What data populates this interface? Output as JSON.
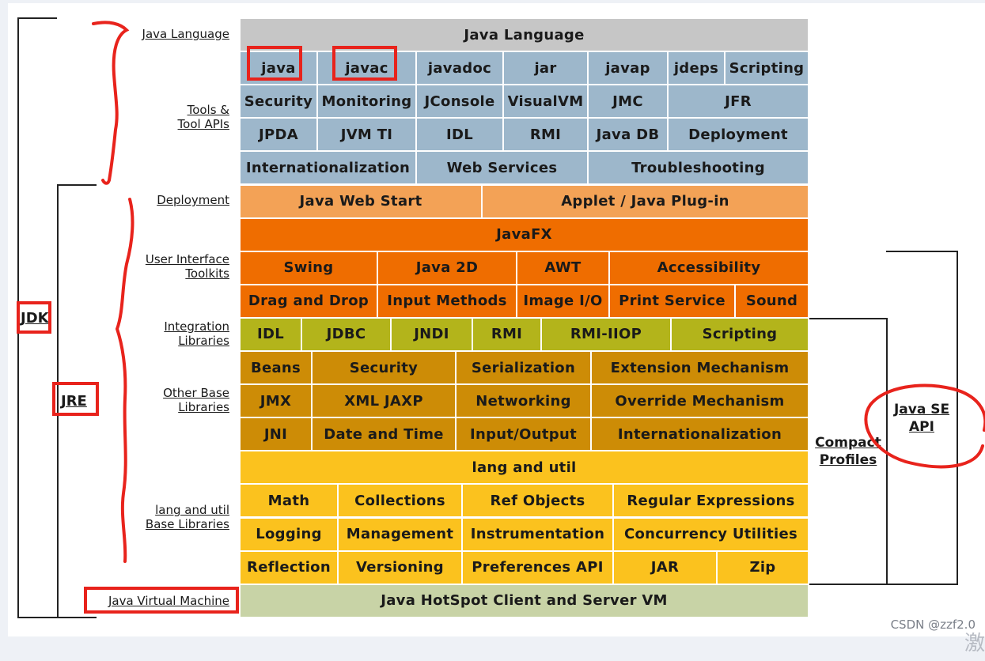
{
  "colors": {
    "gray": "#c6c6c6",
    "steel": "#9db7cb",
    "light_orange": "#f3a256",
    "orange": "#ef6d00",
    "olive": "#b3b41b",
    "gold": "#cd8c06",
    "yellow": "#fbc21e",
    "sage": "#c8d3a6",
    "annotation_red": "#e8231c"
  },
  "left_labels": {
    "java_language": "Java Language",
    "tools": "Tools &\nTool APIs",
    "deployment": "Deployment",
    "ui_toolkits": "User Interface\nToolkits",
    "integration": "Integration\nLibraries",
    "other_base": "Other Base\nLibraries",
    "lang_util": "lang and util\nBase Libraries",
    "jvm": "Java Virtual Machine"
  },
  "bracket_labels": {
    "jdk": "JDK",
    "jre": "JRE"
  },
  "right_labels": {
    "compact_profiles": "Compact\nProfiles",
    "java_se_api": "Java SE\nAPI"
  },
  "watermark": "CSDN @zzf2.0",
  "watermark_glyph": "激",
  "diagram": {
    "java_language": "Java Language",
    "tools_row1": [
      "java",
      "javac",
      "javadoc",
      "jar",
      "javap",
      "jdeps",
      "Scripting"
    ],
    "tools_row2": [
      "Security",
      "Monitoring",
      "JConsole",
      "VisualVM",
      "JMC",
      "JFR"
    ],
    "tools_row3": [
      "JPDA",
      "JVM TI",
      "IDL",
      "RMI",
      "Java DB",
      "Deployment"
    ],
    "tools_row4": [
      "Internationalization",
      "Web Services",
      "Troubleshooting"
    ],
    "deployment_row": [
      "Java Web Start",
      "Applet / Java Plug-in"
    ],
    "javafx": "JavaFX",
    "ui_row1": [
      "Swing",
      "Java 2D",
      "AWT",
      "Accessibility"
    ],
    "ui_row2": [
      "Drag and Drop",
      "Input Methods",
      "Image I/O",
      "Print Service",
      "Sound"
    ],
    "integration_row": [
      "IDL",
      "JDBC",
      "JNDI",
      "RMI",
      "RMI-IIOP",
      "Scripting"
    ],
    "other_row1": [
      "Beans",
      "Security",
      "Serialization",
      "Extension Mechanism"
    ],
    "other_row2": [
      "JMX",
      "XML JAXP",
      "Networking",
      "Override Mechanism"
    ],
    "other_row3": [
      "JNI",
      "Date and Time",
      "Input/Output",
      "Internationalization"
    ],
    "lang_util": "lang and util",
    "lang_row1": [
      "Math",
      "Collections",
      "Ref Objects",
      "Regular Expressions"
    ],
    "lang_row2": [
      "Logging",
      "Management",
      "Instrumentation",
      "Concurrency Utilities"
    ],
    "lang_row3": [
      "Reflection",
      "Versioning",
      "Preferences API",
      "JAR",
      "Zip"
    ],
    "jvm": "Java HotSpot Client and Server VM"
  }
}
